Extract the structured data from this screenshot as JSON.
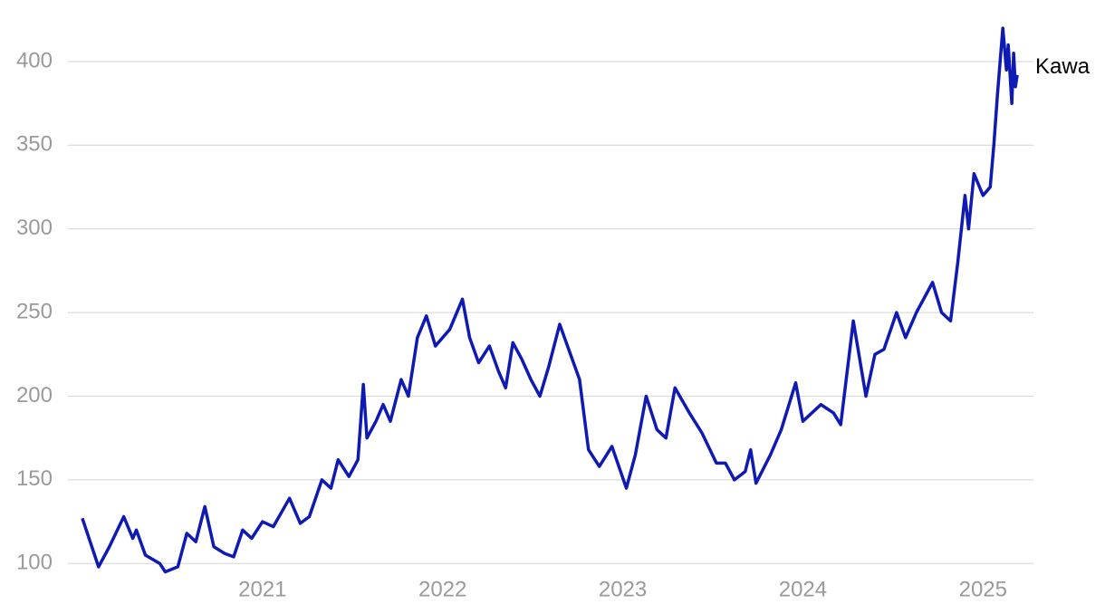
{
  "chart_data": {
    "type": "line",
    "x": [
      2020.0,
      2020.09,
      2020.15,
      2020.23,
      2020.28,
      2020.3,
      2020.35,
      2020.43,
      2020.46,
      2020.53,
      2020.58,
      2020.63,
      2020.68,
      2020.73,
      2020.79,
      2020.84,
      2020.89,
      2020.94,
      2021.0,
      2021.06,
      2021.15,
      2021.21,
      2021.26,
      2021.33,
      2021.38,
      2021.42,
      2021.48,
      2021.53,
      2021.56,
      2021.58,
      2021.63,
      2021.67,
      2021.71,
      2021.77,
      2021.81,
      2021.86,
      2021.91,
      2021.96,
      2022.04,
      2022.11,
      2022.15,
      2022.2,
      2022.26,
      2022.31,
      2022.35,
      2022.39,
      2022.44,
      2022.49,
      2022.54,
      2022.59,
      2022.65,
      2022.7,
      2022.76,
      2022.81,
      2022.87,
      2022.94,
      2023.02,
      2023.07,
      2023.13,
      2023.19,
      2023.24,
      2023.29,
      2023.37,
      2023.44,
      2023.52,
      2023.57,
      2023.62,
      2023.68,
      2023.71,
      2023.74,
      2023.82,
      2023.88,
      2023.96,
      2024.0,
      2024.1,
      2024.17,
      2024.21,
      2024.28,
      2024.35,
      2024.4,
      2024.45,
      2024.52,
      2024.57,
      2024.63,
      2024.72,
      2024.77,
      2024.82,
      2024.86,
      2024.9,
      2024.92,
      2024.95,
      2025.0,
      2025.04,
      2025.06,
      2025.08,
      2025.11,
      2025.13,
      2025.14,
      2025.16,
      2025.17,
      2025.18,
      2025.19
    ],
    "series": [
      {
        "name": "Kawa",
        "color": "#0f19b4",
        "values": [
          127,
          98,
          110,
          128,
          115,
          120,
          105,
          100,
          95,
          98,
          118,
          113,
          134,
          110,
          106,
          104,
          120,
          115,
          125,
          122,
          139,
          124,
          128,
          150,
          145,
          162,
          152,
          162,
          207,
          175,
          185,
          195,
          185,
          210,
          200,
          235,
          248,
          230,
          240,
          258,
          235,
          220,
          230,
          215,
          205,
          232,
          222,
          210,
          200,
          218,
          243,
          228,
          210,
          168,
          158,
          170,
          145,
          165,
          200,
          180,
          175,
          205,
          190,
          178,
          160,
          160,
          150,
          155,
          168,
          148,
          165,
          180,
          208,
          185,
          195,
          190,
          183,
          245,
          200,
          225,
          228,
          250,
          235,
          250,
          268,
          250,
          245,
          280,
          320,
          300,
          333,
          320,
          325,
          350,
          380,
          420,
          395,
          410,
          375,
          405,
          385,
          392
        ]
      }
    ],
    "xlim": [
      2019.92,
      2025.28
    ],
    "xticks": [
      2021,
      2022,
      2023,
      2024,
      2025
    ],
    "ylim": [
      92,
      426
    ],
    "yticks": [
      100,
      150,
      200,
      250,
      300,
      350,
      400
    ],
    "grid": true
  }
}
